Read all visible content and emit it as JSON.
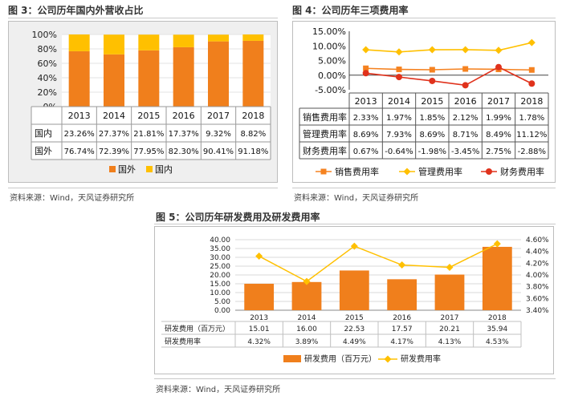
{
  "fig3": {
    "title": "图 3：公司历年国内外营收占比",
    "source": "资料来源：Wind，天风证券研究所",
    "colors": {
      "domestic": "#ffc000",
      "foreign": "#f07f1c",
      "bg": "#efefef"
    },
    "chart_data": {
      "type": "bar",
      "stacked": true,
      "percent": true,
      "categories": [
        "2013",
        "2014",
        "2015",
        "2016",
        "2017",
        "2018"
      ],
      "series": [
        {
          "name": "国外",
          "values": [
            76.74,
            72.39,
            77.95,
            82.3,
            90.41,
            91.18
          ],
          "labels": [
            "76.74%",
            "72.39%",
            "77.95%",
            "82.30%",
            "90.41%",
            "91.18%"
          ]
        },
        {
          "name": "国内",
          "values": [
            23.26,
            27.37,
            21.81,
            17.37,
            9.32,
            8.82
          ],
          "labels": [
            "23.26%",
            "27.37%",
            "21.81%",
            "17.37%",
            "9.32%",
            "8.82%"
          ]
        }
      ],
      "yticks": [
        "0%",
        "20%",
        "40%",
        "60%",
        "80%",
        "100%"
      ],
      "ylim": [
        0,
        100
      ],
      "table_rows": [
        "国内",
        "国外"
      ],
      "legend": [
        "国外",
        "国内"
      ],
      "legend_position": "bottom"
    }
  },
  "fig4": {
    "title": "图 4：公司历年三项费用率",
    "source": "资料来源：Wind，天风证券研究所",
    "colors": {
      "selling": "#f58220",
      "admin": "#ffc000",
      "finance": "#e0321c"
    },
    "chart_data": {
      "type": "line",
      "categories": [
        "2013",
        "2014",
        "2015",
        "2016",
        "2017",
        "2018"
      ],
      "series": [
        {
          "name": "销售费用率",
          "values": [
            2.33,
            1.97,
            1.85,
            2.12,
            1.99,
            1.78
          ],
          "labels": [
            "2.33%",
            "1.97%",
            "1.85%",
            "2.12%",
            "1.99%",
            "1.78%"
          ],
          "marker": "square"
        },
        {
          "name": "管理费用率",
          "values": [
            8.69,
            7.93,
            8.69,
            8.71,
            8.49,
            11.12
          ],
          "labels": [
            "8.69%",
            "7.93%",
            "8.69%",
            "8.71%",
            "8.49%",
            "11.12%"
          ],
          "marker": "diamond"
        },
        {
          "name": "财务费用率",
          "values": [
            0.67,
            -0.64,
            -1.98,
            -3.45,
            2.75,
            -2.88
          ],
          "labels": [
            "0.67%",
            "-0.64%",
            "-1.98%",
            "-3.45%",
            "2.75%",
            "-2.88%"
          ],
          "marker": "circle"
        }
      ],
      "yticks": [
        "15.00%",
        "10.00%",
        "5.00%",
        "0.00%",
        "-5.00%"
      ],
      "ylim": [
        -5,
        15
      ],
      "legend_position": "bottom"
    }
  },
  "fig5": {
    "title": "图 5：公司历年研发费用及研发费用率",
    "source": "资料来源：Wind，天风证券研究所",
    "colors": {
      "bar": "#f07f1c",
      "line": "#ffc000",
      "grid": "#d9d9d9"
    },
    "chart_data": {
      "type": "bar",
      "categories": [
        "2013",
        "2014",
        "2015",
        "2016",
        "2017",
        "2018"
      ],
      "series": [
        {
          "name": "研发费用（百万元）",
          "table_label": "研发费用（百万元）",
          "axis": "left",
          "values": [
            15.01,
            16.0,
            22.53,
            17.57,
            20.21,
            35.94
          ],
          "labels": [
            "15.01",
            "16.00",
            "22.53",
            "17.57",
            "20.21",
            "35.94"
          ]
        },
        {
          "name": "研发费用率",
          "table_label": "研发费用率",
          "axis": "right",
          "type": "line",
          "values": [
            4.32,
            3.89,
            4.49,
            4.17,
            4.13,
            4.53
          ],
          "labels": [
            "4.32%",
            "3.89%",
            "4.49%",
            "4.17%",
            "4.13%",
            "4.53%"
          ]
        }
      ],
      "yticks_left": [
        "40.00",
        "35.00",
        "30.00",
        "25.00",
        "20.00",
        "15.00",
        "10.00",
        "5.00",
        "0.00"
      ],
      "ylim_left": [
        0,
        40
      ],
      "yticks_right": [
        "4.60%",
        "4.40%",
        "4.20%",
        "4.00%",
        "3.80%",
        "3.60%",
        "3.40%"
      ],
      "ylim_right": [
        3.4,
        4.6
      ],
      "legend_position": "bottom"
    }
  }
}
